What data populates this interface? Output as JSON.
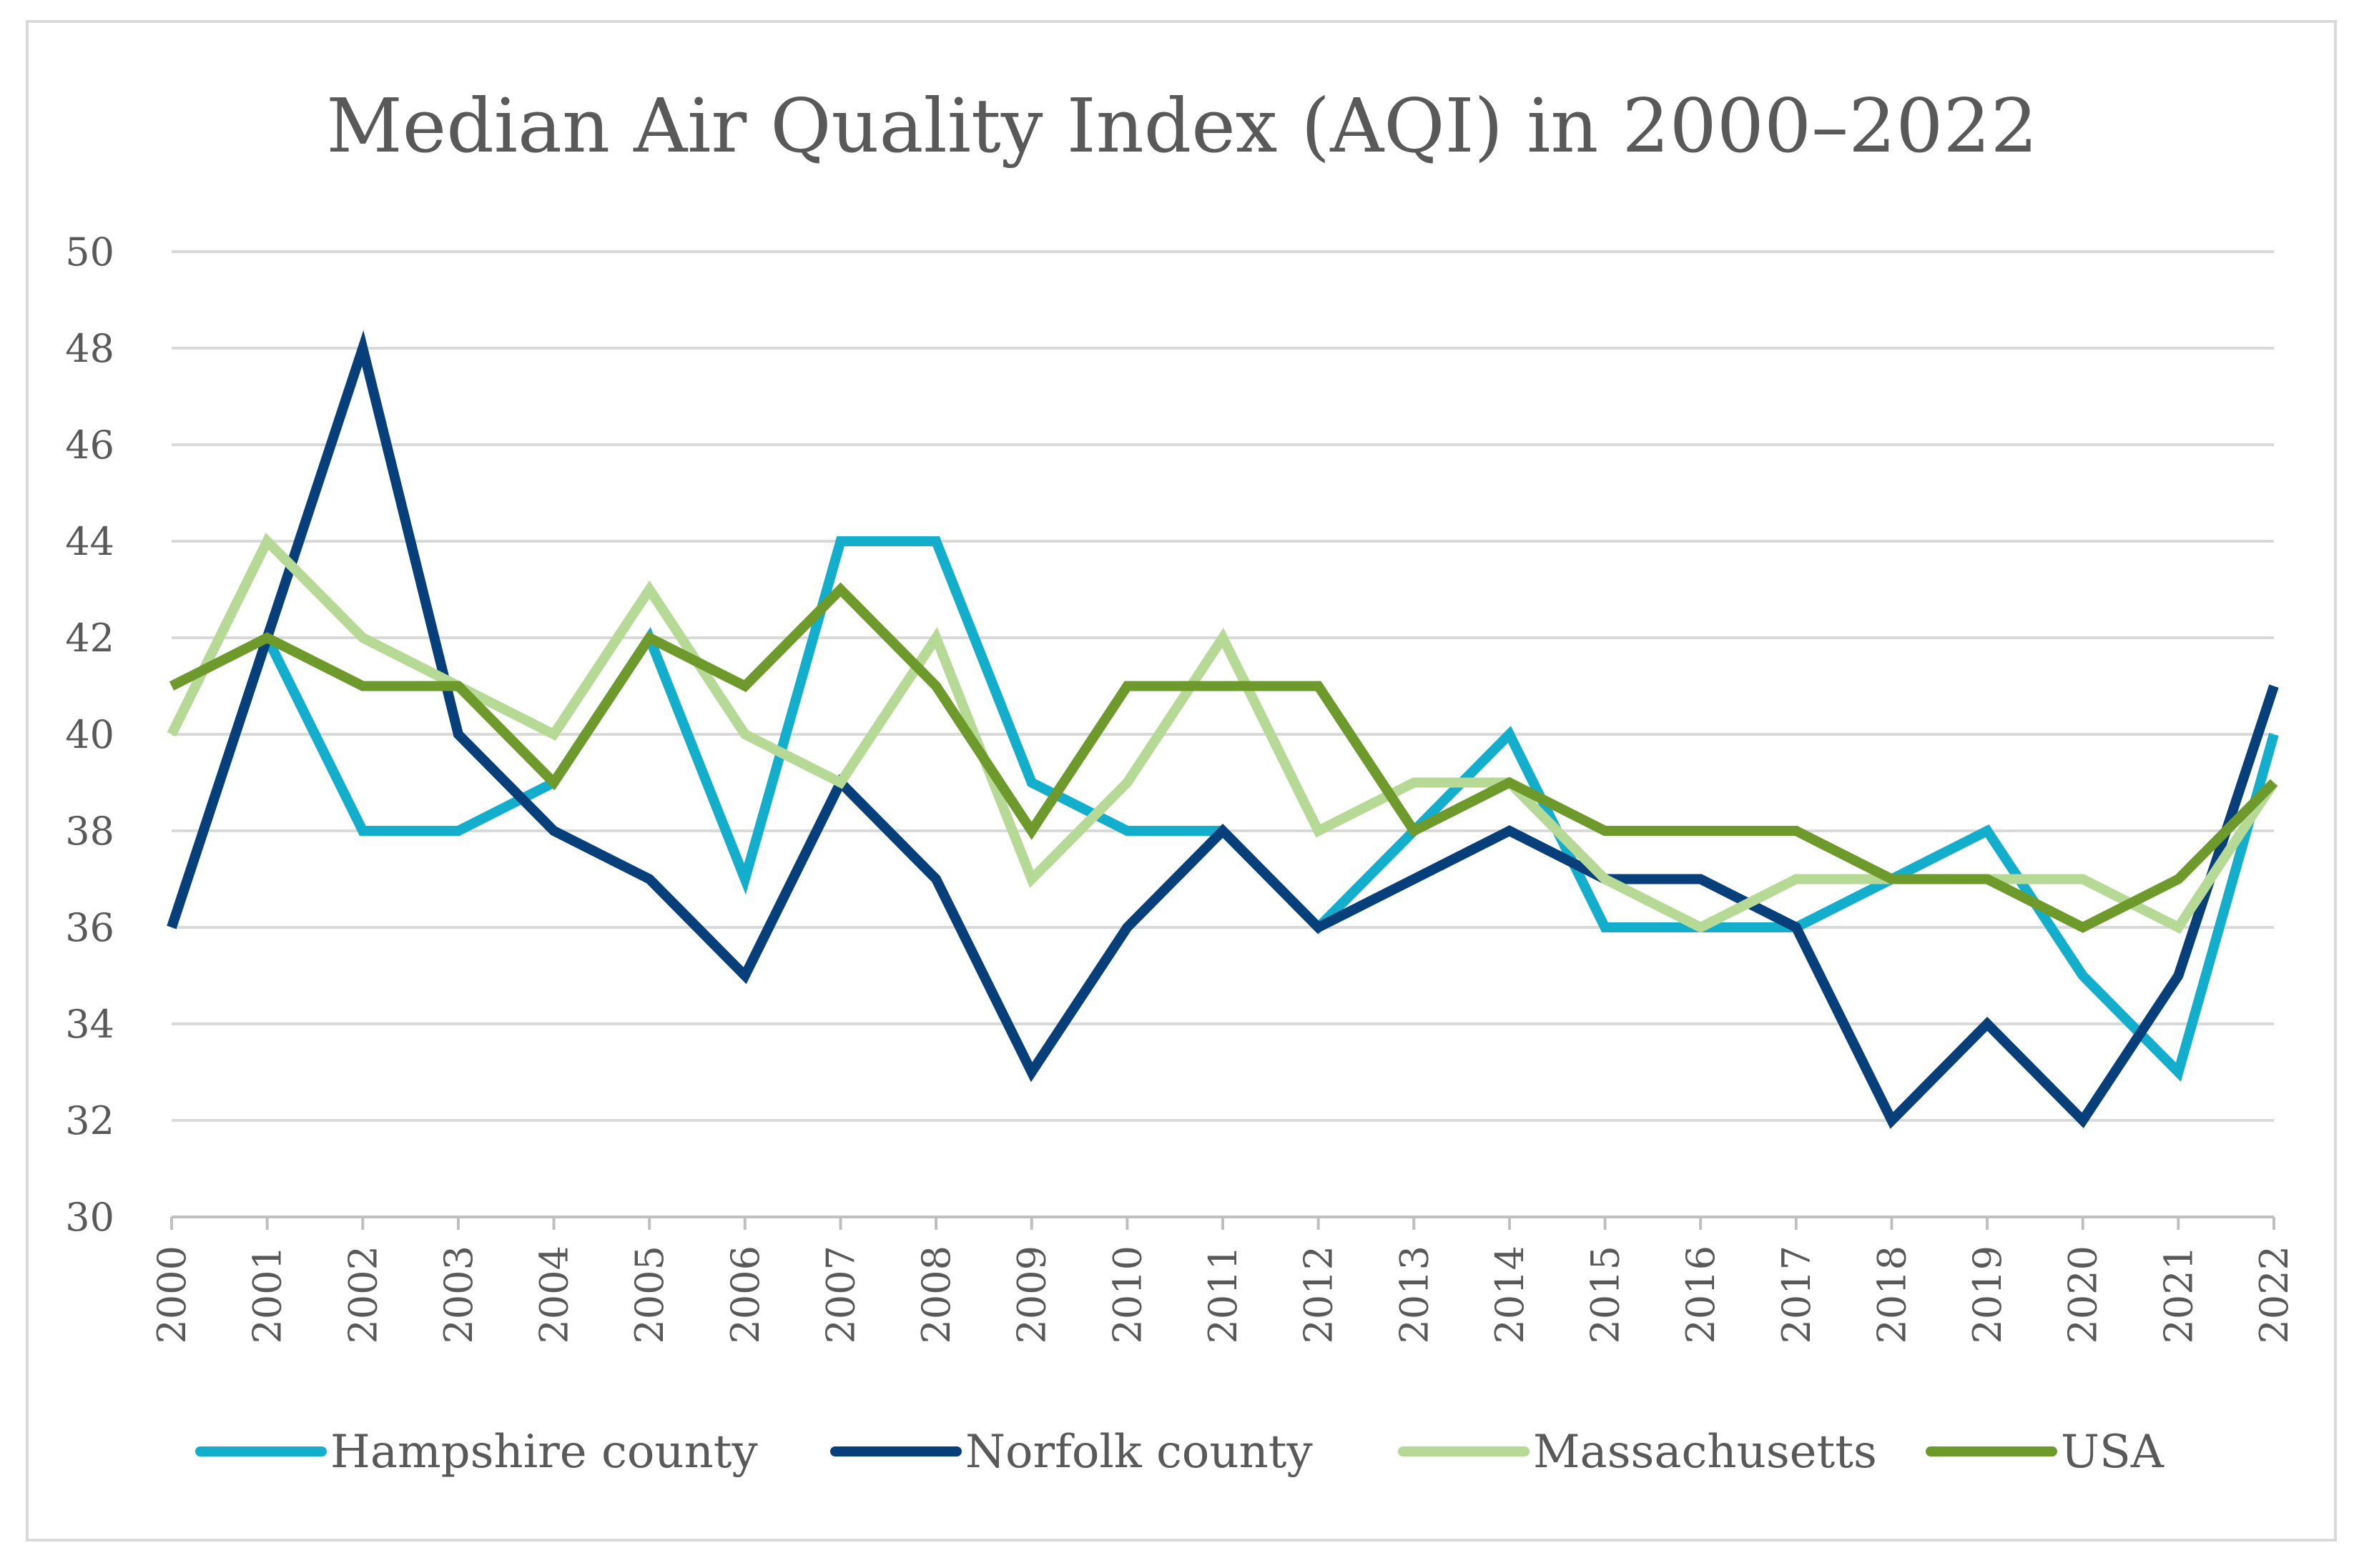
{
  "chart_data": {
    "type": "line",
    "title": "Median Air Quality Index (AQI) in 2000–2022",
    "xlabel": "",
    "ylabel": "",
    "ylim": [
      30,
      50
    ],
    "yticks": [
      "30",
      "32",
      "34",
      "36",
      "38",
      "40",
      "42",
      "44",
      "46",
      "48",
      "50"
    ],
    "grid": true,
    "legend_position": "bottom",
    "categories": [
      "2000",
      "2001",
      "2002",
      "2003",
      "2004",
      "2005",
      "2006",
      "2007",
      "2008",
      "2009",
      "2010",
      "2011",
      "2012",
      "2013",
      "2014",
      "2015",
      "2016",
      "2017",
      "2018",
      "2019",
      "2020",
      "2021",
      "2022"
    ],
    "series": [
      {
        "name": "Hampshire county",
        "color": "#12AECC",
        "values": [
          36,
          42,
          38,
          38,
          39,
          42,
          37,
          44,
          44,
          39,
          38,
          38,
          36,
          38,
          40,
          36,
          36,
          36,
          37,
          38,
          35,
          33,
          40
        ]
      },
      {
        "name": "Norfolk county",
        "color": "#073F7A",
        "values": [
          36,
          42,
          48,
          40,
          38,
          37,
          35,
          39,
          37,
          33,
          36,
          38,
          36,
          37,
          38,
          37,
          37,
          36,
          32,
          34,
          32,
          35,
          41
        ]
      },
      {
        "name": "Massachusetts",
        "color": "#B6D996",
        "values": [
          40,
          44,
          42,
          41,
          40,
          43,
          40,
          39,
          42,
          37,
          39,
          42,
          38,
          39,
          39,
          37,
          36,
          37,
          37,
          37,
          37,
          36,
          39
        ]
      },
      {
        "name": "USA",
        "color": "#6E9A2C",
        "values": [
          41,
          42,
          41,
          41,
          39,
          42,
          41,
          43,
          41,
          38,
          41,
          41,
          41,
          38,
          39,
          38,
          38,
          38,
          37,
          37,
          36,
          37,
          39
        ]
      }
    ]
  }
}
